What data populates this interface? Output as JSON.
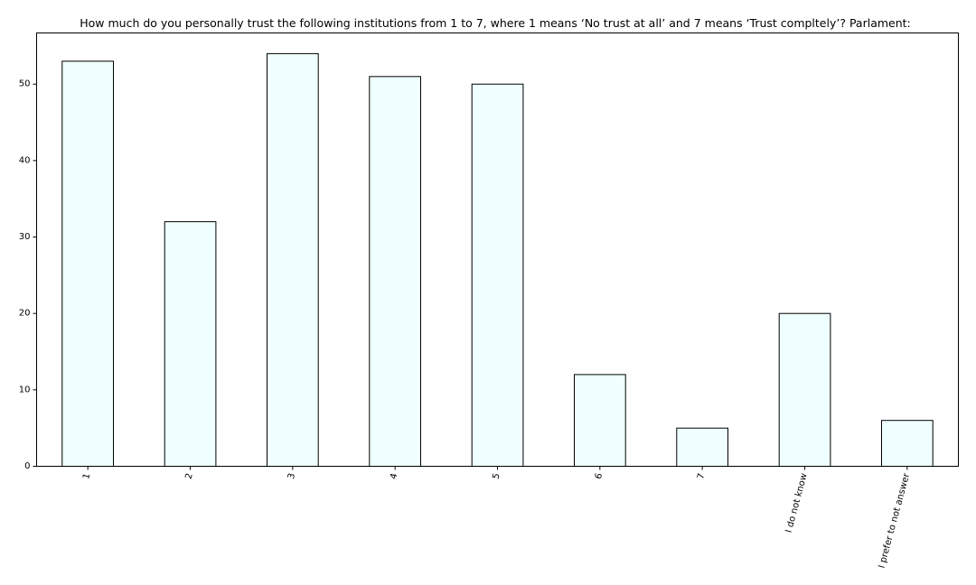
{
  "chart_data": {
    "type": "bar",
    "title": "How much do you personally trust the following institutions from 1 to 7, where 1 means ‘No trust at all’ and 7 means ‘Trust compltely’? Parlament:",
    "xlabel": "",
    "ylabel": "",
    "categories": [
      "1",
      "2",
      "3",
      "4",
      "5",
      "6",
      "7",
      "I do not know",
      "I prefer to not answer"
    ],
    "values": [
      53,
      32,
      54,
      51,
      50,
      12,
      5,
      20,
      6
    ],
    "ylim": [
      0,
      56.7
    ],
    "yticks": [
      0,
      10,
      20,
      30,
      40,
      50
    ],
    "grid": false,
    "bar_color": "#f0ffff",
    "edge_color": "#000000"
  }
}
